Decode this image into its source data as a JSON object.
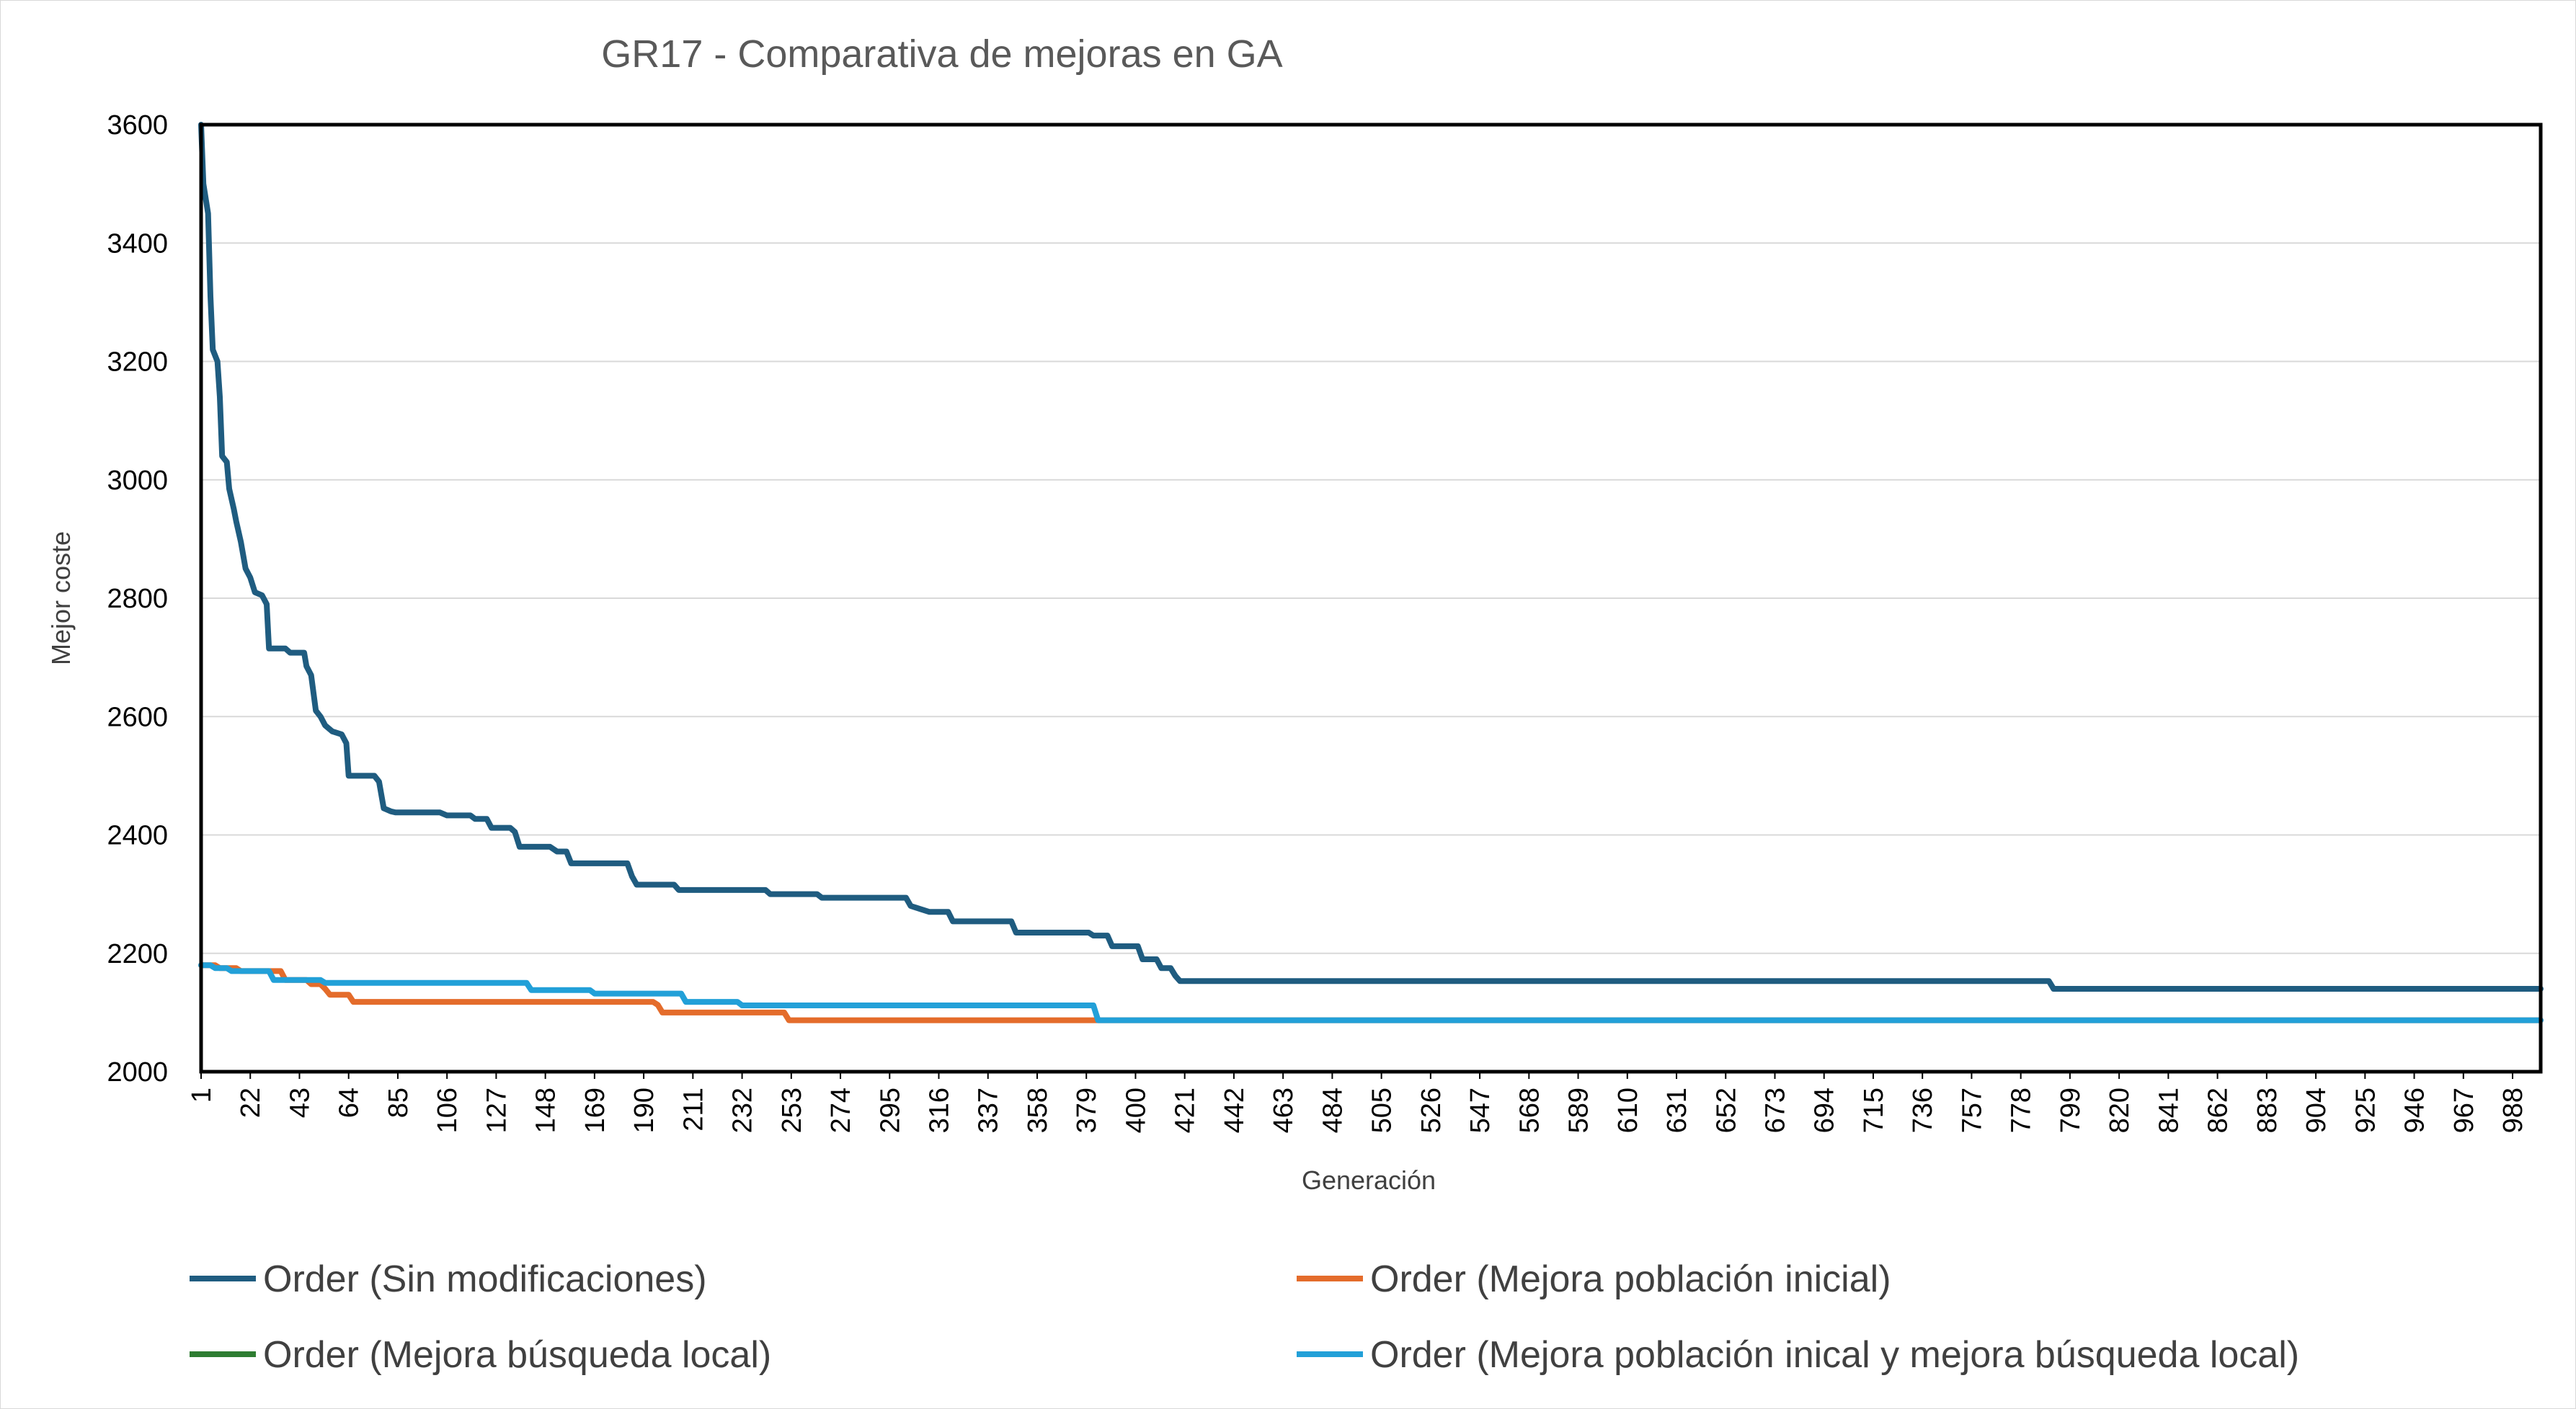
{
  "chart_data": {
    "type": "line",
    "title": "GR17 - Comparativa de mejoras en GA",
    "xlabel": "Generación",
    "ylabel": "Mejor coste",
    "xlim": [
      1,
      1000
    ],
    "ylim": [
      2000,
      3600
    ],
    "y_ticks": [
      "2000",
      "2200",
      "2400",
      "2600",
      "2800",
      "3000",
      "3200",
      "3400",
      "3600"
    ],
    "x_ticks": [
      "1",
      "22",
      "43",
      "64",
      "85",
      "106",
      "127",
      "148",
      "169",
      "190",
      "211",
      "232",
      "253",
      "274",
      "295",
      "316",
      "337",
      "358",
      "379",
      "400",
      "421",
      "442",
      "463",
      "484",
      "505",
      "526",
      "547",
      "568",
      "589",
      "610",
      "631",
      "652",
      "673",
      "694",
      "715",
      "736",
      "757",
      "778",
      "799",
      "820",
      "841",
      "862",
      "883",
      "904",
      "925",
      "946",
      "967",
      "988"
    ],
    "grid": "horizontal",
    "legend_position": "bottom",
    "series": [
      {
        "name": "Order (Sin modificaciones)",
        "color": "#1f5c80",
        "points": [
          [
            1,
            3600
          ],
          [
            2,
            3500
          ],
          [
            4,
            3450
          ],
          [
            5,
            3310
          ],
          [
            6,
            3220
          ],
          [
            8,
            3200
          ],
          [
            9,
            3140
          ],
          [
            10,
            3040
          ],
          [
            12,
            3030
          ],
          [
            13,
            2985
          ],
          [
            15,
            2950
          ],
          [
            16,
            2930
          ],
          [
            18,
            2895
          ],
          [
            20,
            2850
          ],
          [
            22,
            2835
          ],
          [
            24,
            2810
          ],
          [
            27,
            2805
          ],
          [
            29,
            2790
          ],
          [
            30,
            2715
          ],
          [
            37,
            2715
          ],
          [
            39,
            2708
          ],
          [
            45,
            2708
          ],
          [
            46,
            2685
          ],
          [
            48,
            2670
          ],
          [
            50,
            2610
          ],
          [
            52,
            2600
          ],
          [
            54,
            2585
          ],
          [
            57,
            2575
          ],
          [
            61,
            2570
          ],
          [
            63,
            2555
          ],
          [
            64,
            2500
          ],
          [
            75,
            2500
          ],
          [
            77,
            2490
          ],
          [
            79,
            2445
          ],
          [
            82,
            2440
          ],
          [
            84,
            2438
          ],
          [
            103,
            2438
          ],
          [
            106,
            2433
          ],
          [
            116,
            2433
          ],
          [
            118,
            2427
          ],
          [
            123,
            2427
          ],
          [
            125,
            2412
          ],
          [
            133,
            2412
          ],
          [
            135,
            2405
          ],
          [
            137,
            2380
          ],
          [
            150,
            2380
          ],
          [
            153,
            2372
          ],
          [
            157,
            2372
          ],
          [
            159,
            2352
          ],
          [
            183,
            2352
          ],
          [
            185,
            2330
          ],
          [
            187,
            2316
          ],
          [
            203,
            2316
          ],
          [
            205,
            2307
          ],
          [
            242,
            2307
          ],
          [
            244,
            2300
          ],
          [
            264,
            2300
          ],
          [
            266,
            2294
          ],
          [
            302,
            2294
          ],
          [
            304,
            2280
          ],
          [
            308,
            2275
          ],
          [
            312,
            2270
          ],
          [
            320,
            2270
          ],
          [
            322,
            2254
          ],
          [
            347,
            2254
          ],
          [
            349,
            2235
          ],
          [
            380,
            2235
          ],
          [
            382,
            2230
          ],
          [
            388,
            2230
          ],
          [
            390,
            2212
          ],
          [
            401,
            2212
          ],
          [
            403,
            2190
          ],
          [
            409,
            2190
          ],
          [
            411,
            2175
          ],
          [
            415,
            2175
          ],
          [
            417,
            2162
          ],
          [
            419,
            2153
          ],
          [
            790,
            2153
          ],
          [
            792,
            2140
          ],
          [
            1000,
            2140
          ]
        ]
      },
      {
        "name": "Order (Mejora población inicial)",
        "color": "#e46c2b",
        "points": [
          [
            1,
            2180
          ],
          [
            7,
            2180
          ],
          [
            9,
            2175
          ],
          [
            16,
            2175
          ],
          [
            18,
            2170
          ],
          [
            35,
            2170
          ],
          [
            37,
            2155
          ],
          [
            46,
            2155
          ],
          [
            48,
            2148
          ],
          [
            52,
            2148
          ],
          [
            54,
            2140
          ],
          [
            56,
            2130
          ],
          [
            64,
            2130
          ],
          [
            66,
            2118
          ],
          [
            194,
            2118
          ],
          [
            196,
            2113
          ],
          [
            198,
            2100
          ],
          [
            250,
            2100
          ],
          [
            252,
            2087
          ],
          [
            1000,
            2087
          ]
        ]
      },
      {
        "name": "Order (Mejora búsqueda local)",
        "color": "#2e7d32",
        "points": []
      },
      {
        "name": "Order (Mejora población inical y mejora búsqueda local)",
        "color": "#22a0d8",
        "points": [
          [
            1,
            2180
          ],
          [
            5,
            2180
          ],
          [
            7,
            2175
          ],
          [
            12,
            2175
          ],
          [
            14,
            2170
          ],
          [
            30,
            2170
          ],
          [
            32,
            2155
          ],
          [
            52,
            2155
          ],
          [
            54,
            2150
          ],
          [
            140,
            2150
          ],
          [
            142,
            2138
          ],
          [
            167,
            2138
          ],
          [
            169,
            2132
          ],
          [
            206,
            2132
          ],
          [
            208,
            2118
          ],
          [
            230,
            2118
          ],
          [
            232,
            2112
          ],
          [
            382,
            2112
          ],
          [
            384,
            2087
          ],
          [
            1000,
            2087
          ]
        ]
      }
    ]
  }
}
